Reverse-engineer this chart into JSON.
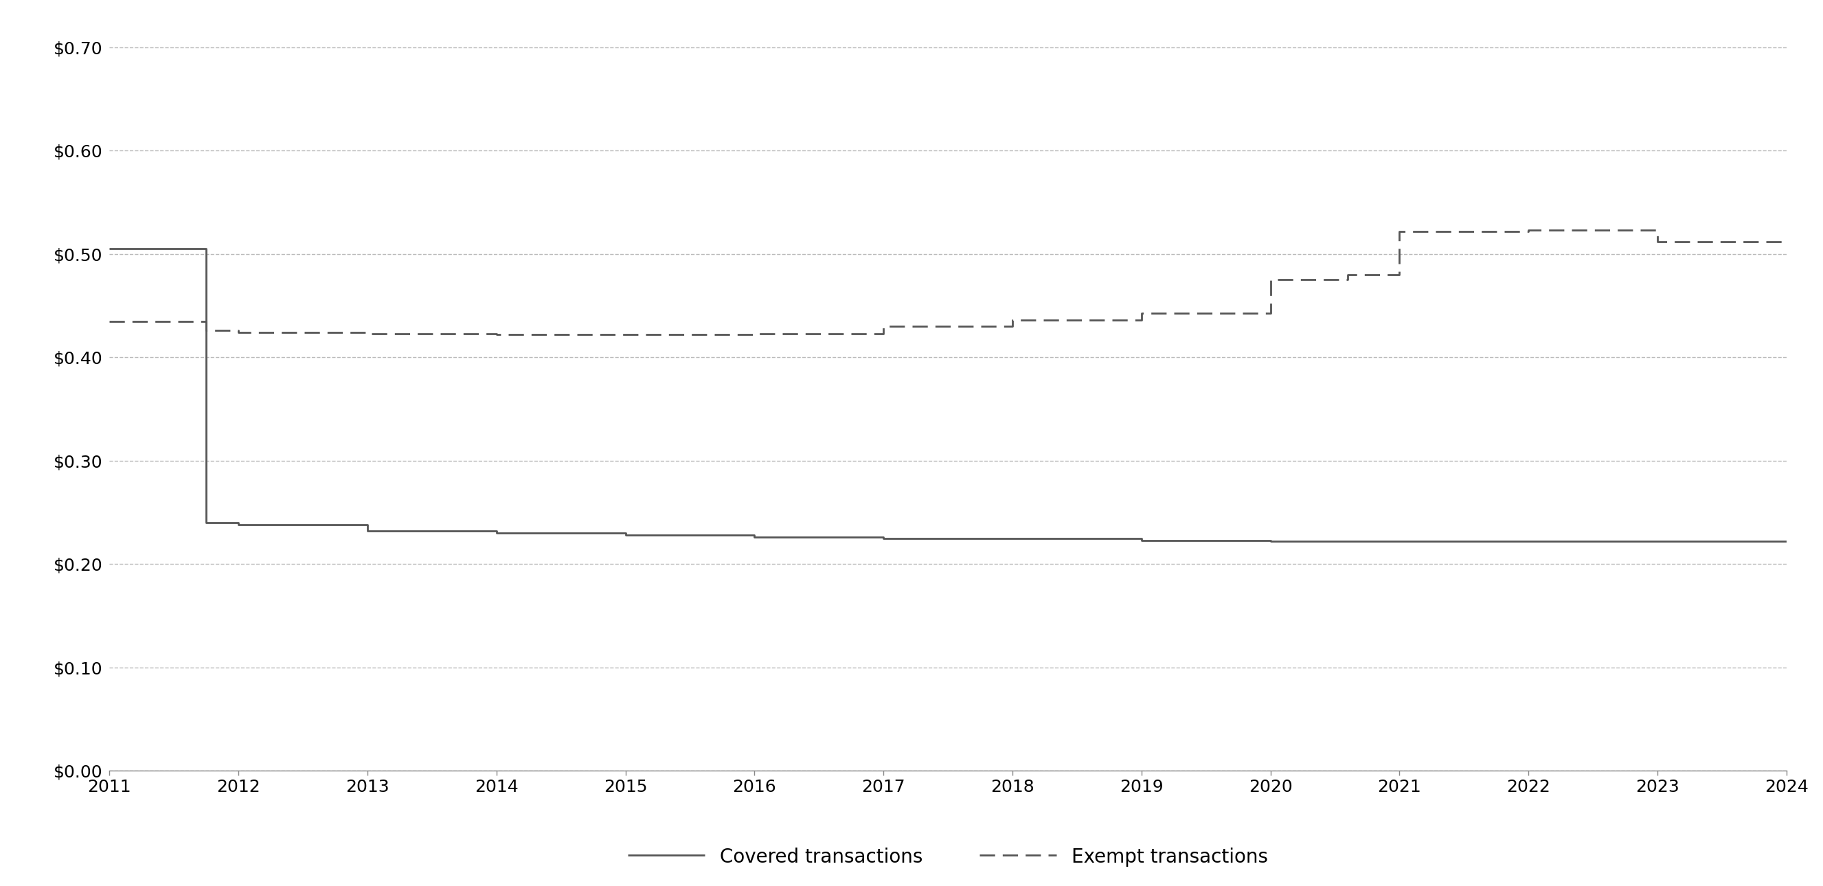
{
  "covered_x": [
    2011,
    2011.75,
    2011.75,
    2012,
    2012,
    2013,
    2013,
    2014,
    2014,
    2015,
    2015,
    2016,
    2016,
    2017,
    2017,
    2018,
    2018,
    2019,
    2019,
    2020,
    2020,
    2021,
    2021,
    2022,
    2022,
    2023,
    2023,
    2024
  ],
  "covered_y": [
    0.505,
    0.505,
    0.24,
    0.24,
    0.238,
    0.238,
    0.232,
    0.232,
    0.23,
    0.23,
    0.228,
    0.228,
    0.226,
    0.226,
    0.225,
    0.225,
    0.225,
    0.225,
    0.223,
    0.223,
    0.222,
    0.222,
    0.222,
    0.222,
    0.222,
    0.222,
    0.222,
    0.222
  ],
  "exempt_x": [
    2011,
    2011.75,
    2011.75,
    2012,
    2012,
    2013,
    2013,
    2014,
    2014,
    2015,
    2015,
    2016,
    2016,
    2017,
    2017,
    2018,
    2018,
    2019,
    2019,
    2020,
    2020,
    2020.6,
    2020.6,
    2021,
    2021,
    2022,
    2022,
    2023,
    2023,
    2024
  ],
  "exempt_y": [
    0.435,
    0.435,
    0.426,
    0.426,
    0.424,
    0.424,
    0.423,
    0.423,
    0.422,
    0.422,
    0.422,
    0.422,
    0.423,
    0.423,
    0.43,
    0.43,
    0.436,
    0.436,
    0.443,
    0.443,
    0.475,
    0.475,
    0.48,
    0.48,
    0.522,
    0.522,
    0.523,
    0.523,
    0.512,
    0.512
  ],
  "xlim": [
    2011,
    2024
  ],
  "ylim": [
    0.0,
    0.72
  ],
  "yticks": [
    0.0,
    0.1,
    0.2,
    0.3,
    0.4,
    0.5,
    0.6,
    0.7
  ],
  "xticks": [
    2011,
    2012,
    2013,
    2014,
    2015,
    2016,
    2017,
    2018,
    2019,
    2020,
    2021,
    2022,
    2023,
    2024
  ],
  "line_color": "#555555",
  "grid_color": "#bbbbbb",
  "background_color": "#ffffff",
  "legend_covered": "Covered transactions",
  "legend_exempt": "Exempt transactions",
  "covered_linewidth": 2.0,
  "exempt_linewidth": 2.0,
  "tick_fontsize": 18,
  "legend_fontsize": 20
}
